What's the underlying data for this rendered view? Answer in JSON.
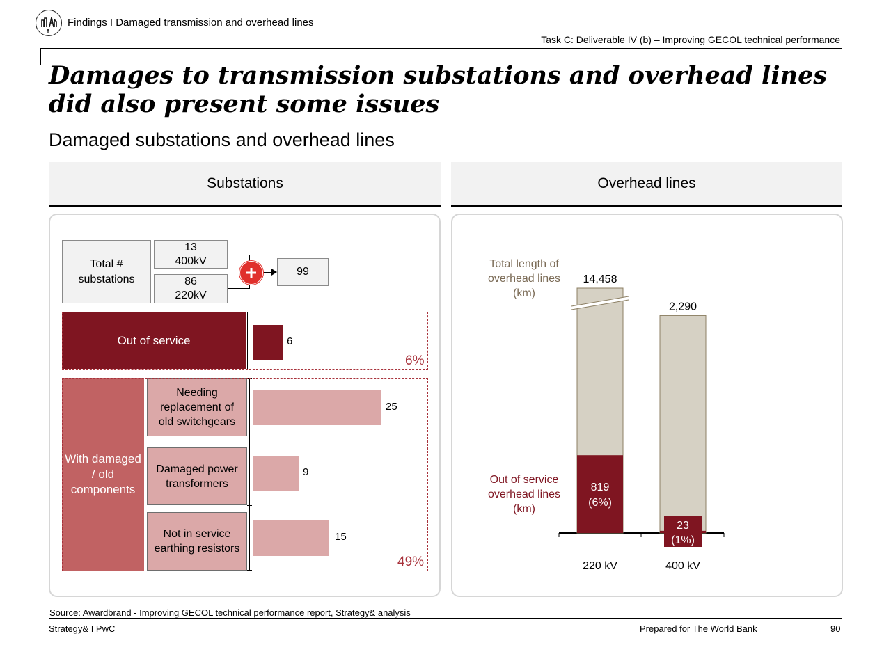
{
  "header": {
    "breadcrumb": "Findings I Damaged transmission and overhead lines",
    "task": "Task C: Deliverable IV (b) – Improving GECOL technical performance"
  },
  "title": "Damages to transmission substations and overhead lines did also present some issues",
  "subtitle": "Damaged substations and overhead lines",
  "substations": {
    "heading": "Substations",
    "total_label": "Total # substations",
    "kv400": {
      "count": "13",
      "label": "400kV"
    },
    "kv220": {
      "count": "86",
      "label": "220kV"
    },
    "total": "99",
    "out_of_service": {
      "label": "Out of service",
      "value": "6",
      "pct": "6%"
    },
    "damaged_group_label": "With damaged / old components",
    "items": [
      {
        "label": "Needing replacement of old switchgears",
        "value": "25"
      },
      {
        "label": "Damaged power transformers",
        "value": "9"
      },
      {
        "label": "Not in service earthing resistors",
        "value": "15"
      }
    ],
    "damaged_pct": "49%"
  },
  "overhead": {
    "heading": "Overhead lines",
    "total_label": "Total length of overhead lines (km)",
    "oos_label": "Out of service overhead lines (km)"
  },
  "chart_data": {
    "type": "bar",
    "categories": [
      "220 kV",
      "400 kV"
    ],
    "series": [
      {
        "name": "Total length of overhead lines (km)",
        "values": [
          14458,
          2290
        ],
        "labels": [
          "14,458",
          "2,290"
        ]
      },
      {
        "name": "Out of service overhead lines (km)",
        "values": [
          819,
          23
        ],
        "labels": [
          "819",
          "23"
        ],
        "pct_labels": [
          "(6%)",
          "(1%)"
        ]
      }
    ],
    "axis_break": "220 kV bar broken",
    "colors": {
      "total": "#d6d1c4",
      "out_of_service": "#7f1521"
    }
  },
  "footer": {
    "source": "Source: Awardbrand - Improving GECOL technical performance report, Strategy& analysis",
    "left": "Strategy& I PwC",
    "right": "Prepared for The World Bank",
    "page": "90"
  },
  "icons": {
    "logo": "power-tower-logo-icon",
    "plus": "plus-icon"
  }
}
